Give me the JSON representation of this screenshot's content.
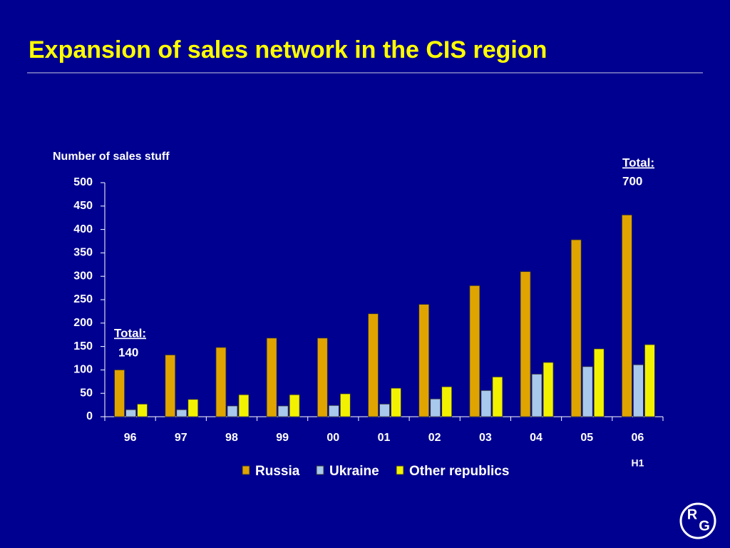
{
  "chart_data": {
    "type": "bar",
    "title": "Expansion of sales network in the CIS region",
    "y_label": "Number of sales stuff",
    "categories": [
      "96",
      "97",
      "98",
      "99",
      "00",
      "01",
      "02",
      "03",
      "04",
      "05",
      "06"
    ],
    "category_note": "H1",
    "series": [
      {
        "name": "Russia",
        "color": "#e0a400",
        "values": [
          100,
          132,
          148,
          168,
          168,
          220,
          240,
          280,
          310,
          378,
          431
        ]
      },
      {
        "name": "Ukraine",
        "color": "#a8c8ec",
        "values": [
          15,
          15,
          23,
          23,
          24,
          27,
          38,
          56,
          91,
          107,
          111
        ]
      },
      {
        "name": "Other republics",
        "color": "#f2f200",
        "values": [
          27,
          37,
          47,
          47,
          49,
          61,
          64,
          85,
          116,
          145,
          154
        ]
      }
    ],
    "ylim": [
      0,
      500
    ],
    "yticks": [
      0,
      50,
      100,
      150,
      200,
      250,
      300,
      350,
      400,
      450,
      500
    ],
    "grid": false,
    "annotations": [
      {
        "label": "Total:",
        "value": 140
      },
      {
        "label": "Total:",
        "value": 700
      }
    ],
    "logo": [
      "R",
      "G"
    ]
  }
}
